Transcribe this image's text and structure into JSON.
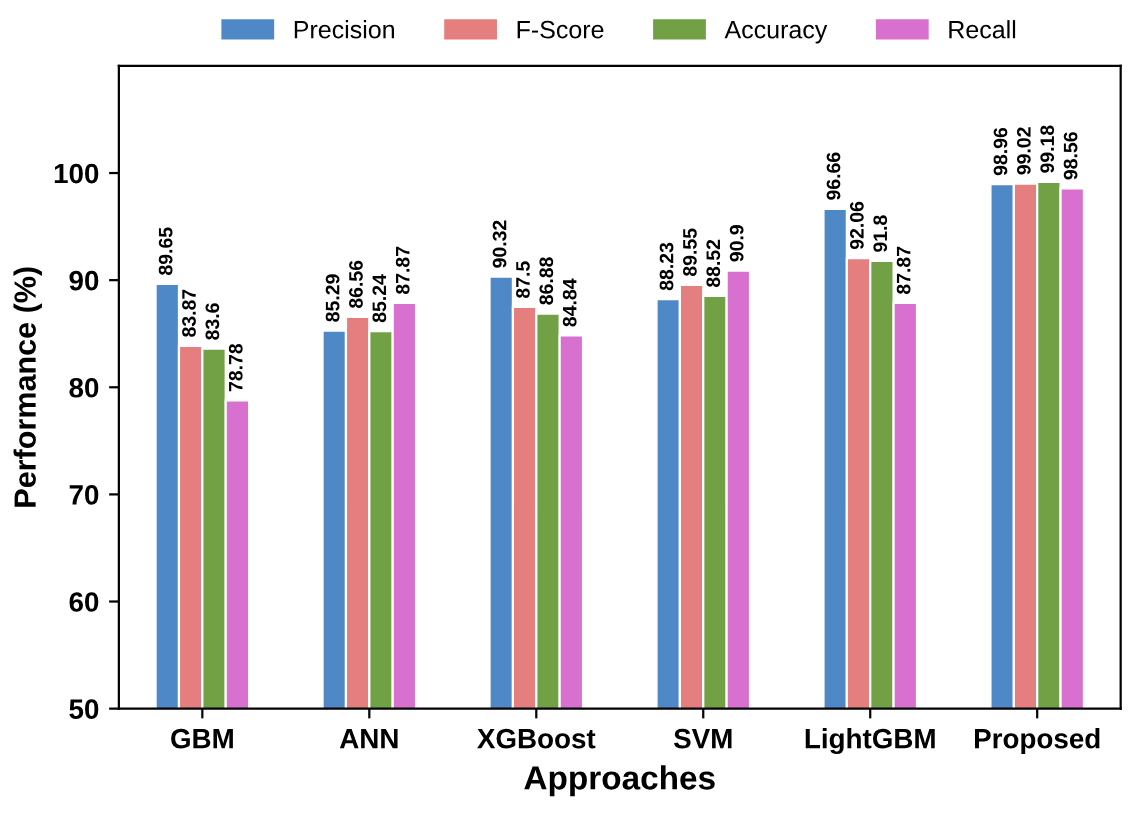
{
  "chart_data": {
    "type": "bar",
    "xlabel": "Approaches",
    "ylabel": "Performance (%)",
    "categories": [
      "GBM",
      "ANN",
      "XGBoost",
      "SVM",
      "LightGBM",
      "Proposed"
    ],
    "series": [
      {
        "name": "Precision",
        "color": "#4f88c6",
        "values": [
          89.65,
          85.29,
          90.32,
          88.23,
          96.66,
          98.96
        ]
      },
      {
        "name": "F-Score",
        "color": "#e57f7f",
        "values": [
          83.87,
          86.56,
          87.5,
          89.55,
          92.06,
          99.02
        ]
      },
      {
        "name": "Accuracy",
        "color": "#72a044",
        "values": [
          83.6,
          85.24,
          86.88,
          88.52,
          91.8,
          99.18
        ]
      },
      {
        "name": "Recall",
        "color": "#d870d0",
        "values": [
          78.78,
          87.87,
          84.84,
          90.9,
          87.87,
          98.56
        ]
      }
    ],
    "ylim": [
      50,
      110
    ],
    "yticks": [
      50,
      60,
      70,
      80,
      90,
      100
    ],
    "data_labels": true,
    "grid": false,
    "legend": "top"
  }
}
